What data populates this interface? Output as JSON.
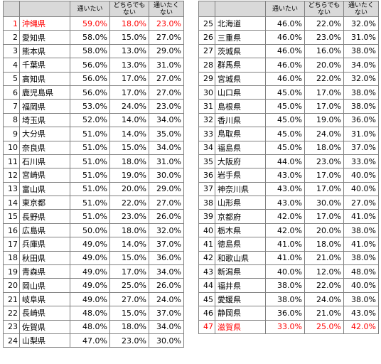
{
  "tables": [
    {
      "header": [
        "通いたい",
        "どちらでもない",
        "通いたくない"
      ],
      "rows": [
        {
          "cells": [
            1,
            "沖縄県",
            "59.0%",
            "18.0%",
            "23.0%"
          ],
          "color": "#ff0000"
        },
        {
          "cells": [
            2,
            "愛知県",
            "58.0%",
            "15.0%",
            "27.0%"
          ]
        },
        {
          "cells": [
            3,
            "熊本県",
            "58.0%",
            "13.0%",
            "29.0%"
          ]
        },
        {
          "cells": [
            4,
            "千葉県",
            "56.0%",
            "13.0%",
            "31.0%"
          ]
        },
        {
          "cells": [
            5,
            "高知県",
            "56.0%",
            "17.0%",
            "27.0%"
          ]
        },
        {
          "cells": [
            6,
            "鹿児島県",
            "56.0%",
            "17.0%",
            "27.0%"
          ]
        },
        {
          "cells": [
            7,
            "福岡県",
            "53.0%",
            "24.0%",
            "23.0%"
          ]
        },
        {
          "cells": [
            8,
            "埼玉県",
            "52.0%",
            "14.0%",
            "34.0%"
          ]
        },
        {
          "cells": [
            9,
            "大分県",
            "51.0%",
            "14.0%",
            "35.0%"
          ]
        },
        {
          "cells": [
            10,
            "奈良県",
            "51.0%",
            "15.0%",
            "34.0%"
          ]
        },
        {
          "cells": [
            11,
            "石川県",
            "51.0%",
            "18.0%",
            "31.0%"
          ]
        },
        {
          "cells": [
            12,
            "宮崎県",
            "51.0%",
            "19.0%",
            "30.0%"
          ]
        },
        {
          "cells": [
            13,
            "富山県",
            "51.0%",
            "20.0%",
            "29.0%"
          ]
        },
        {
          "cells": [
            14,
            "東京都",
            "51.0%",
            "22.0%",
            "27.0%"
          ]
        },
        {
          "cells": [
            15,
            "長野県",
            "51.0%",
            "23.0%",
            "26.0%"
          ]
        },
        {
          "cells": [
            16,
            "広島県",
            "50.0%",
            "18.0%",
            "32.0%"
          ]
        },
        {
          "cells": [
            17,
            "兵庫県",
            "49.0%",
            "14.0%",
            "37.0%"
          ]
        },
        {
          "cells": [
            18,
            "秋田県",
            "49.0%",
            "15.0%",
            "36.0%"
          ]
        },
        {
          "cells": [
            19,
            "青森県",
            "49.0%",
            "17.0%",
            "34.0%"
          ]
        },
        {
          "cells": [
            20,
            "岡山県",
            "49.0%",
            "25.0%",
            "26.0%"
          ]
        },
        {
          "cells": [
            21,
            "岐阜県",
            "49.0%",
            "27.0%",
            "24.0%"
          ]
        },
        {
          "cells": [
            22,
            "長崎県",
            "48.0%",
            "15.0%",
            "37.0%"
          ]
        },
        {
          "cells": [
            23,
            "佐賀県",
            "48.0%",
            "18.0%",
            "34.0%"
          ]
        },
        {
          "cells": [
            24,
            "山梨県",
            "47.0%",
            "23.0%",
            "30.0%"
          ]
        }
      ]
    },
    {
      "header": [
        "通いたい",
        "どちらでもない",
        "通いたくない"
      ],
      "rows": [
        {
          "cells": [
            25,
            "北海道",
            "46.0%",
            "22.0%",
            "32.0%"
          ]
        },
        {
          "cells": [
            26,
            "三重県",
            "46.0%",
            "23.0%",
            "31.0%"
          ]
        },
        {
          "cells": [
            27,
            "茨城県",
            "46.0%",
            "16.0%",
            "38.0%"
          ]
        },
        {
          "cells": [
            28,
            "群馬県",
            "46.0%",
            "20.0%",
            "34.0%"
          ]
        },
        {
          "cells": [
            29,
            "宮城県",
            "46.0%",
            "22.0%",
            "32.0%"
          ]
        },
        {
          "cells": [
            30,
            "山口県",
            "45.0%",
            "17.0%",
            "38.0%"
          ]
        },
        {
          "cells": [
            31,
            "島根県",
            "45.0%",
            "17.0%",
            "38.0%"
          ]
        },
        {
          "cells": [
            32,
            "香川県",
            "45.0%",
            "19.0%",
            "36.0%"
          ]
        },
        {
          "cells": [
            33,
            "鳥取県",
            "45.0%",
            "24.0%",
            "31.0%"
          ]
        },
        {
          "cells": [
            34,
            "福島県",
            "45.0%",
            "18.0%",
            "37.0%"
          ]
        },
        {
          "cells": [
            35,
            "大阪府",
            "44.0%",
            "23.0%",
            "33.0%"
          ]
        },
        {
          "cells": [
            36,
            "岩手県",
            "43.0%",
            "17.0%",
            "40.0%"
          ]
        },
        {
          "cells": [
            37,
            "神奈川県",
            "43.0%",
            "17.0%",
            "40.0%"
          ]
        },
        {
          "cells": [
            38,
            "山形県",
            "43.0%",
            "30.0%",
            "27.0%"
          ]
        },
        {
          "cells": [
            39,
            "京都府",
            "42.0%",
            "17.0%",
            "41.0%"
          ]
        },
        {
          "cells": [
            40,
            "栃木県",
            "42.0%",
            "20.0%",
            "38.0%"
          ]
        },
        {
          "cells": [
            41,
            "徳島県",
            "41.0%",
            "18.0%",
            "41.0%"
          ]
        },
        {
          "cells": [
            42,
            "和歌山県",
            "41.0%",
            "21.0%",
            "38.0%"
          ]
        },
        {
          "cells": [
            43,
            "新潟県",
            "40.0%",
            "12.0%",
            "48.0%"
          ]
        },
        {
          "cells": [
            44,
            "福井県",
            "38.0%",
            "22.0%",
            "40.0%"
          ]
        },
        {
          "cells": [
            45,
            "愛媛県",
            "38.0%",
            "24.0%",
            "38.0%"
          ]
        },
        {
          "cells": [
            46,
            "静岡県",
            "36.0%",
            "21.0%",
            "43.0%"
          ]
        },
        {
          "cells": [
            47,
            "滋賀県",
            "33.0%",
            "25.0%",
            "42.0%"
          ],
          "color": "#ff0000"
        }
      ]
    }
  ]
}
